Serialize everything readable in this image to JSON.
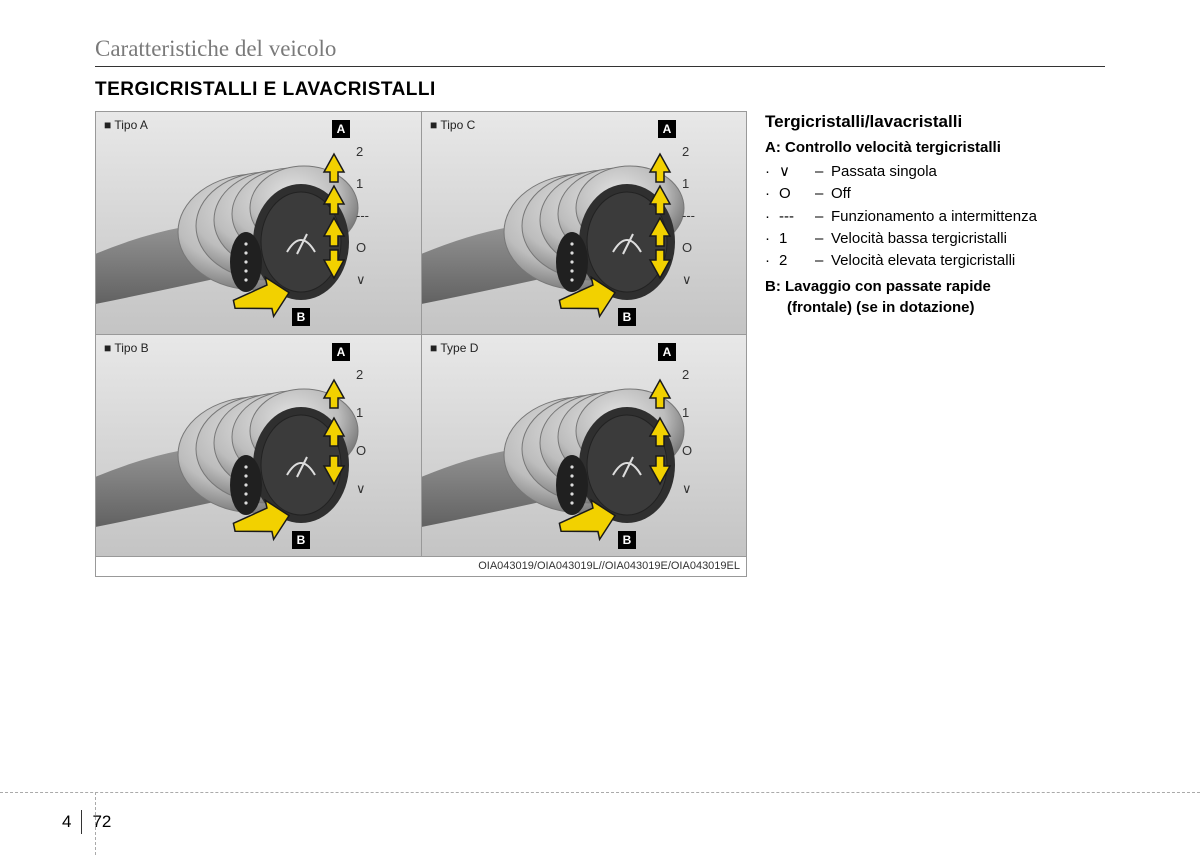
{
  "header": "Caratteristiche del veicolo",
  "title": "TERGICRISTALLI E LAVACRISTALLI",
  "figure": {
    "cells": [
      {
        "type_label": "■ Tipo A",
        "variant": "with_int"
      },
      {
        "type_label": "■ Tipo C",
        "variant": "with_int"
      },
      {
        "type_label": "■ Tipo B",
        "variant": "no_int"
      },
      {
        "type_label": "■ Type D",
        "variant": "no_int"
      }
    ],
    "badge_a": "A",
    "badge_b": "B",
    "positions_with_int": [
      "2",
      "1",
      "---",
      "O",
      "∨"
    ],
    "positions_no_int": [
      "2",
      "1",
      "O",
      "∨"
    ],
    "caption": "OIA043019/OIA043019L//OIA043019E/OIA043019EL"
  },
  "text": {
    "subtitle": "Tergicristalli/lavacristalli",
    "line_a": "A: Controllo velocità tergicristalli",
    "legend": [
      {
        "sym": "∨",
        "desc": "Passata singola"
      },
      {
        "sym": "O",
        "desc": "Off"
      },
      {
        "sym": "---",
        "desc": "Funzionamento a intermittenza"
      },
      {
        "sym": "1",
        "desc": "Velocità bassa tergicristalli"
      },
      {
        "sym": "2",
        "desc": "Velocità elevata tergicristalli"
      }
    ],
    "line_b1": "B: Lavaggio con passate rapide",
    "line_b2": "(frontale) (se in dotazione)"
  },
  "page": {
    "chapter": "4",
    "number": "72"
  },
  "colors": {
    "arrow_fill": "#f2d100",
    "arrow_stroke": "#1a1a1a",
    "lever_light": "#bdbdbd",
    "lever_dark": "#6f6f6f",
    "knob": "#3b3b3b"
  }
}
